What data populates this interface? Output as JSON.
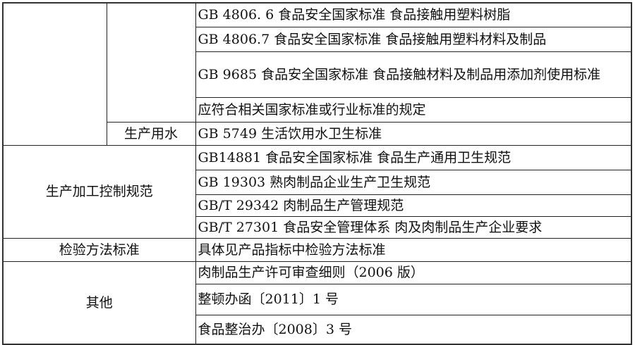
{
  "table": {
    "section_packaging": {
      "rows": [
        "GB 4806. 6  食品安全国家标准  食品接触用塑料树脂",
        "GB 4806.7  食品安全国家标准  食品接触用塑料材料及制品",
        "GB 9685  食品安全国家标准  食品接触材料及制品用添加剂使用标准",
        "应符合相关国家标准或行业标准的规定"
      ]
    },
    "section_water": {
      "label": "生产用水",
      "rows": [
        "GB 5749  生活饮用水卫生标准"
      ]
    },
    "section_process": {
      "label": "生产加工控制规范",
      "rows": [
        "GB14881 食品安全国家标准  食品生产通用卫生规范",
        "GB 19303  熟肉制品企业生产卫生规范",
        "GB/T 29342  肉制品生产管理规范",
        "GB/T 27301  食品安全管理体系  肉及肉制品生产企业要求"
      ]
    },
    "section_test": {
      "label": "检验方法标准",
      "rows": [
        "具体见产品指标中检验方法标准"
      ]
    },
    "section_other": {
      "label": "其他",
      "rows": [
        "肉制品生产许可审查细则（2006 版）",
        "整顿办函〔2011〕1 号",
        "食品整治办〔2008〕3 号"
      ]
    }
  }
}
